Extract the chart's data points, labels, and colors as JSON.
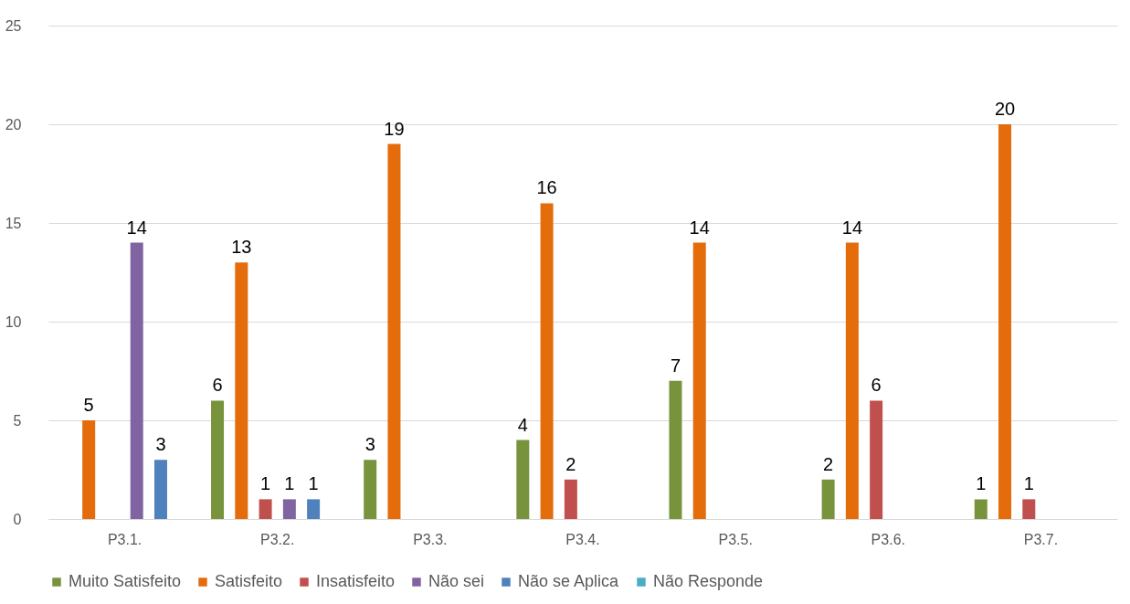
{
  "chart_data": {
    "type": "bar",
    "categories": [
      "P3.1.",
      "P3.2.",
      "P3.3.",
      "P3.4.",
      "P3.5.",
      "P3.6.",
      "P3.7."
    ],
    "series": [
      {
        "name": "Muito Satisfeito",
        "color": "#77933c",
        "values": [
          null,
          6,
          3,
          4,
          7,
          2,
          1
        ]
      },
      {
        "name": "Satisfeito",
        "color": "#e46c0a",
        "values": [
          5,
          13,
          19,
          16,
          14,
          14,
          20
        ]
      },
      {
        "name": "Insatisfeito",
        "color": "#c0504d",
        "values": [
          null,
          1,
          null,
          2,
          null,
          6,
          1
        ]
      },
      {
        "name": "Não sei",
        "color": "#8064a2",
        "values": [
          14,
          1,
          null,
          null,
          null,
          null,
          null
        ]
      },
      {
        "name": "Não se Aplica",
        "color": "#4f81bd",
        "values": [
          3,
          1,
          null,
          null,
          null,
          null,
          null
        ]
      },
      {
        "name": "Não Responde",
        "color": "#4bacc6",
        "values": [
          null,
          null,
          null,
          null,
          null,
          null,
          null
        ]
      }
    ],
    "ylim": [
      0,
      25
    ],
    "yticks": [
      0,
      5,
      10,
      15,
      20,
      25
    ],
    "grid": "y",
    "legend": "bottom",
    "data_labels": true
  }
}
